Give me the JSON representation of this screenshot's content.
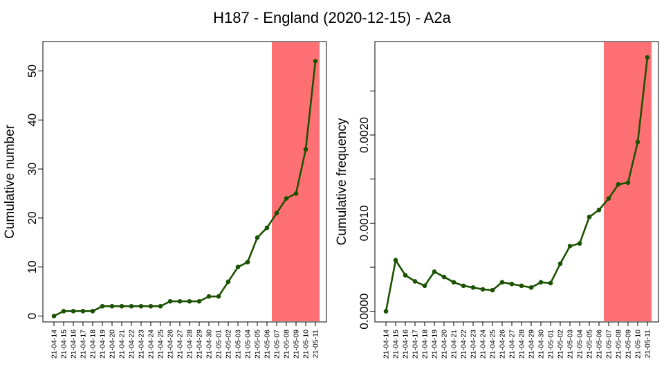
{
  "title": "H187 - England (2020-12-15) - A2a",
  "colors": {
    "line": "#1a5200",
    "point": "#1a5200",
    "highlight": "#ff7074",
    "axis": "#000000"
  },
  "chart_data": [
    {
      "type": "line",
      "ylabel": "Cumulative number",
      "ylim": [
        -1.2,
        56
      ],
      "yticks": [
        0,
        10,
        20,
        30,
        40,
        50
      ],
      "yticklabels": [
        "0",
        "10",
        "20",
        "30",
        "40",
        "50"
      ],
      "categories": [
        "21-04-14",
        "21-04-15",
        "21-04-16",
        "21-04-17",
        "21-04-18",
        "21-04-19",
        "21-04-20",
        "21-04-21",
        "21-04-22",
        "21-04-23",
        "21-04-24",
        "21-04-25",
        "21-04-26",
        "21-04-27",
        "21-04-28",
        "21-04-29",
        "21-04-30",
        "21-05-01",
        "21-05-02",
        "21-05-03",
        "21-05-04",
        "21-05-05",
        "21-05-06",
        "21-05-07",
        "21-05-08",
        "21-05-09",
        "21-05-10",
        "21-05-11"
      ],
      "values": [
        0,
        1,
        1,
        1,
        1,
        2,
        2,
        2,
        2,
        2,
        2,
        2,
        3,
        3,
        3,
        3,
        4,
        4,
        7,
        10,
        11,
        16,
        18,
        21,
        24,
        25,
        34,
        52
      ],
      "highlight_range": [
        "21-05-07",
        "21-05-11"
      ]
    },
    {
      "type": "line",
      "ylabel": "Cumulative frequency",
      "ylim": [
        -0.00012,
        0.00306
      ],
      "yticks": [
        0,
        0.0005,
        0.001,
        0.0015,
        0.002,
        0.0025
      ],
      "yticklabels": [
        "0.0000",
        "",
        "0.0010",
        "",
        "0.0020",
        ""
      ],
      "categories": [
        "21-04-14",
        "21-04-15",
        "21-04-16",
        "21-04-17",
        "21-04-18",
        "21-04-19",
        "21-04-20",
        "21-04-21",
        "21-04-22",
        "21-04-23",
        "21-04-24",
        "21-04-25",
        "21-04-26",
        "21-04-27",
        "21-04-28",
        "21-04-29",
        "21-04-30",
        "21-05-01",
        "21-05-02",
        "21-05-03",
        "21-05-04",
        "21-05-05",
        "21-05-06",
        "21-05-07",
        "21-05-08",
        "21-05-09",
        "21-05-10",
        "21-05-11"
      ],
      "values": [
        0,
        0.00058,
        0.00041,
        0.00034,
        0.00029,
        0.00045,
        0.00039,
        0.00033,
        0.00029,
        0.00027,
        0.00025,
        0.00024,
        0.00033,
        0.00031,
        0.00029,
        0.00027,
        0.00033,
        0.00032,
        0.00054,
        0.00074,
        0.00077,
        0.00107,
        0.00115,
        0.00128,
        0.00144,
        0.00146,
        0.00192,
        0.00288
      ],
      "highlight_range": [
        "21-05-07",
        "21-05-11"
      ]
    }
  ]
}
